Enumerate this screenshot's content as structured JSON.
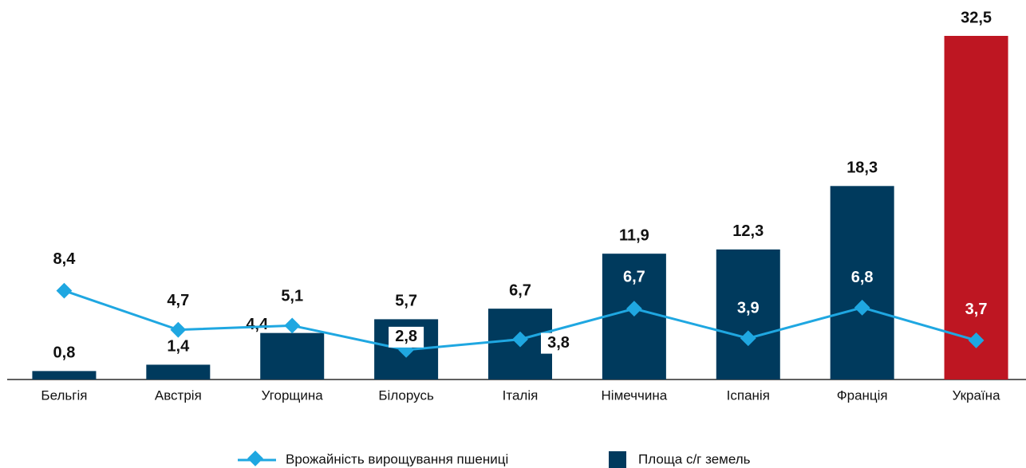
{
  "chart_data": {
    "type": "bar-line",
    "categories": [
      "Бельгія",
      "Австрія",
      "Угорщина",
      "Білорусь",
      "Італія",
      "Німеччина",
      "Іспанія",
      "Франція",
      "Україна"
    ],
    "ylim": [
      0,
      32.5
    ],
    "series": [
      {
        "name": "Врожайність вирощування пшениці",
        "type": "line",
        "color": "#1fa7e1",
        "values": [
          8.4,
          4.7,
          5.1,
          2.8,
          3.8,
          6.7,
          3.9,
          6.8,
          3.7
        ],
        "value_labels": [
          "8,4",
          "4,7",
          "5,1",
          "2,8",
          "3,8",
          "6,7",
          "3,9",
          "6,8",
          "3,7"
        ]
      },
      {
        "name": "Площа с/г земель",
        "type": "bar",
        "color": "#003a5d",
        "colors": [
          "#003a5d",
          "#003a5d",
          "#003a5d",
          "#003a5d",
          "#003a5d",
          "#003a5d",
          "#003a5d",
          "#003a5d",
          "#be1622"
        ],
        "values": [
          0.8,
          1.4,
          4.4,
          5.7,
          6.7,
          11.9,
          12.3,
          18.3,
          32.5
        ],
        "value_labels": [
          "0,8",
          "1,4",
          "4,4",
          "5,7",
          "6,7",
          "11,9",
          "12,3",
          "18,3",
          "32,5"
        ]
      }
    ]
  }
}
